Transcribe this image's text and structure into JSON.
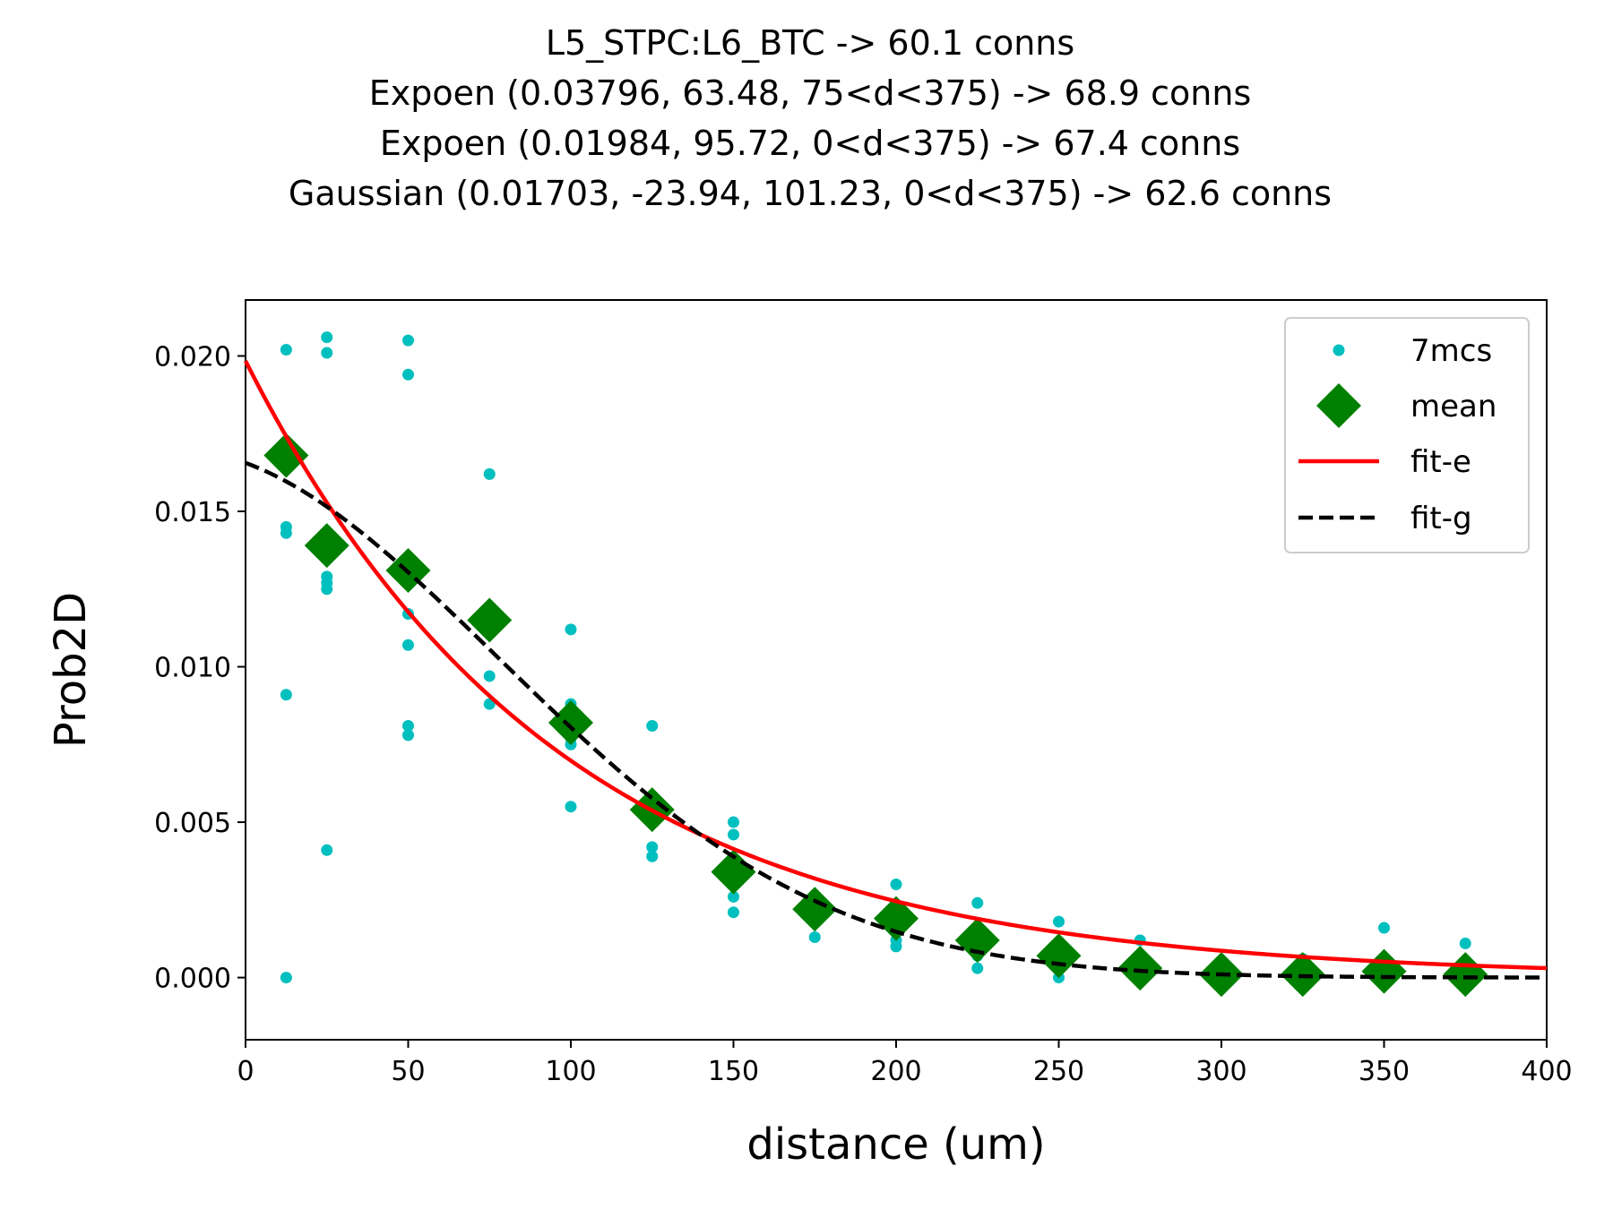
{
  "chart_data": {
    "type": "scatter",
    "title_lines": [
      "L5_STPC:L6_BTC -> 60.1 conns",
      "Expoen (0.03796, 63.48, 75<d<375) -> 68.9 conns",
      "Expoen (0.01984, 95.72, 0<d<375) -> 67.4 conns",
      "Gaussian (0.01703, -23.94, 101.23, 0<d<375) -> 62.6 conns"
    ],
    "xlabel": "distance (um)",
    "ylabel": "Prob2D",
    "xlim": [
      0,
      400
    ],
    "ylim": [
      -0.002,
      0.0218
    ],
    "xticks": [
      0,
      50,
      100,
      150,
      200,
      250,
      300,
      350,
      400
    ],
    "xtick_labels": [
      "0",
      "50",
      "100",
      "150",
      "200",
      "250",
      "300",
      "350",
      "400"
    ],
    "yticks": [
      0.0,
      0.005,
      0.01,
      0.015,
      0.02
    ],
    "ytick_labels": [
      "0.000",
      "0.005",
      "0.010",
      "0.015",
      "0.020"
    ],
    "grid": false,
    "legend_position": "top-right",
    "series": [
      {
        "name": "7mcs",
        "kind": "points",
        "color": "#00bfbf",
        "x": [
          12.5,
          12.5,
          12.5,
          12.5,
          12.5,
          12.5,
          25,
          25,
          25,
          25,
          25,
          25,
          25,
          50,
          50,
          50,
          50,
          50,
          50,
          50,
          75,
          75,
          75,
          75,
          100,
          100,
          100,
          100,
          100,
          125,
          125,
          125,
          125,
          150,
          150,
          150,
          150,
          150,
          150,
          175,
          175,
          175,
          200,
          200,
          200,
          200,
          225,
          225,
          225,
          250,
          250,
          250,
          275,
          275,
          300,
          300,
          325,
          325,
          350,
          350,
          375,
          375
        ],
        "y": [
          0.0202,
          0.0145,
          0.0143,
          0.0091,
          0.0,
          0.0168,
          0.0206,
          0.0201,
          0.0129,
          0.0127,
          0.0125,
          0.0041,
          0.0139,
          0.0205,
          0.0194,
          0.0117,
          0.0107,
          0.0081,
          0.0078,
          0.0131,
          0.0162,
          0.0119,
          0.0097,
          0.0088,
          0.0112,
          0.0088,
          0.0077,
          0.0075,
          0.0055,
          0.0081,
          0.0042,
          0.0039,
          0.0055,
          0.005,
          0.0046,
          0.003,
          0.0026,
          0.0021,
          0.0034,
          0.0024,
          0.0013,
          0.0022,
          0.003,
          0.0018,
          0.0012,
          0.001,
          0.0024,
          0.0007,
          0.0003,
          0.0018,
          0.0005,
          0.0,
          0.0012,
          0.0002,
          0.0002,
          0.0,
          0.0006,
          0.0,
          0.0016,
          0.0002,
          0.0011,
          0.0001
        ]
      },
      {
        "name": "mean",
        "kind": "diamonds",
        "color": "#008000",
        "x": [
          12.5,
          25,
          50,
          75,
          100,
          125,
          150,
          175,
          200,
          225,
          250,
          275,
          300,
          325,
          350,
          375
        ],
        "y": [
          0.0168,
          0.0139,
          0.0131,
          0.0115,
          0.0082,
          0.0054,
          0.0034,
          0.0022,
          0.0019,
          0.0012,
          0.0007,
          0.0003,
          0.0001,
          0.0001,
          0.0002,
          0.0001
        ]
      },
      {
        "name": "fit-e",
        "kind": "line",
        "color": "#ff0000",
        "function": "0.01984*exp(-x/95.72)"
      },
      {
        "name": "fit-g",
        "kind": "dashed-line",
        "color": "#000000",
        "function": "0.01703*exp(-((x+23.94)^2)/(2*101.23^2))"
      }
    ],
    "legend_entries": [
      "7mcs",
      "mean",
      "fit-e",
      "fit-g"
    ]
  }
}
